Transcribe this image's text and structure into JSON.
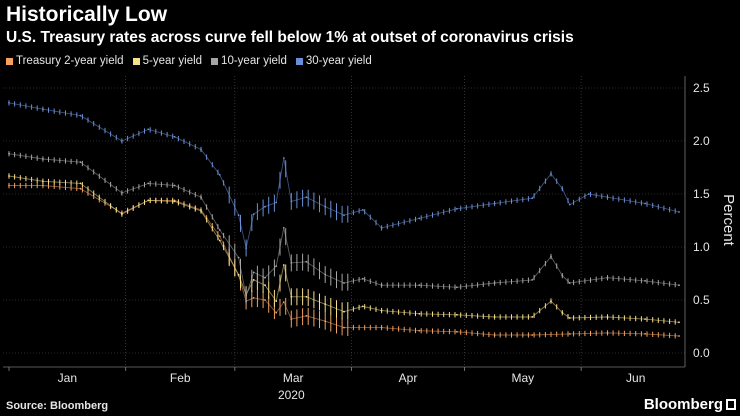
{
  "title": "Historically Low",
  "subtitle": "U.S. Treasury rates across curve fell below 1% at outset of coronavirus crisis",
  "legend": [
    {
      "label": "Treasury 2-year yield",
      "color": "#f4a261"
    },
    {
      "label": "5-year yield",
      "color": "#f7e08a"
    },
    {
      "label": "10-year yield",
      "color": "#a6a6a6"
    },
    {
      "label": "30-year yield",
      "color": "#6b8fd6"
    }
  ],
  "source": "Source: Bloomberg",
  "brand": "Bloomberg",
  "chart_data": {
    "type": "line",
    "title": "Historically Low",
    "xlabel": "2020",
    "ylabel": "Percent",
    "ylim": [
      0,
      2.6
    ],
    "y_ticks": [
      "0.0",
      "0.5",
      "1.0",
      "1.5",
      "2.0",
      "2.5"
    ],
    "x_ticks": [
      "Jan",
      "Feb",
      "Mar",
      "Apr",
      "May",
      "Jun"
    ],
    "x_year_label": "2020",
    "x_unit": "day of year 2020",
    "xlim": [
      1,
      179
    ],
    "month_starts": [
      1,
      32,
      61,
      92,
      122,
      153
    ],
    "grid": true,
    "series": [
      {
        "name": "Treasury 2-year yield",
        "color": "#f4a261",
        "points": [
          [
            1,
            1.58
          ],
          [
            10,
            1.58
          ],
          [
            20,
            1.55
          ],
          [
            31,
            1.32
          ],
          [
            38,
            1.44
          ],
          [
            45,
            1.44
          ],
          [
            52,
            1.35
          ],
          [
            57,
            1.1
          ],
          [
            62,
            0.73
          ],
          [
            64,
            0.49
          ],
          [
            66,
            0.52
          ],
          [
            69,
            0.5
          ],
          [
            72,
            0.38
          ],
          [
            74,
            0.48
          ],
          [
            76,
            0.32
          ],
          [
            80,
            0.35
          ],
          [
            85,
            0.3
          ],
          [
            90,
            0.24
          ],
          [
            100,
            0.24
          ],
          [
            110,
            0.21
          ],
          [
            120,
            0.2
          ],
          [
            130,
            0.17
          ],
          [
            140,
            0.17
          ],
          [
            150,
            0.18
          ],
          [
            160,
            0.19
          ],
          [
            170,
            0.18
          ],
          [
            179,
            0.16
          ]
        ]
      },
      {
        "name": "5-year yield",
        "color": "#f7e08a",
        "points": [
          [
            1,
            1.67
          ],
          [
            10,
            1.62
          ],
          [
            20,
            1.6
          ],
          [
            31,
            1.31
          ],
          [
            38,
            1.44
          ],
          [
            45,
            1.43
          ],
          [
            52,
            1.34
          ],
          [
            57,
            1.06
          ],
          [
            62,
            0.74
          ],
          [
            64,
            0.55
          ],
          [
            66,
            0.69
          ],
          [
            69,
            0.64
          ],
          [
            72,
            0.49
          ],
          [
            74,
            0.83
          ],
          [
            76,
            0.53
          ],
          [
            80,
            0.53
          ],
          [
            85,
            0.46
          ],
          [
            90,
            0.39
          ],
          [
            95,
            0.44
          ],
          [
            100,
            0.4
          ],
          [
            110,
            0.37
          ],
          [
            120,
            0.36
          ],
          [
            130,
            0.34
          ],
          [
            140,
            0.34
          ],
          [
            145,
            0.49
          ],
          [
            148,
            0.38
          ],
          [
            150,
            0.33
          ],
          [
            160,
            0.34
          ],
          [
            170,
            0.32
          ],
          [
            179,
            0.29
          ]
        ]
      },
      {
        "name": "10-year yield",
        "color": "#a6a6a6",
        "points": [
          [
            1,
            1.88
          ],
          [
            10,
            1.83
          ],
          [
            20,
            1.8
          ],
          [
            31,
            1.51
          ],
          [
            38,
            1.6
          ],
          [
            45,
            1.58
          ],
          [
            52,
            1.47
          ],
          [
            57,
            1.16
          ],
          [
            62,
            0.9
          ],
          [
            64,
            0.54
          ],
          [
            66,
            0.76
          ],
          [
            69,
            0.71
          ],
          [
            72,
            0.82
          ],
          [
            74,
            1.18
          ],
          [
            76,
            0.85
          ],
          [
            80,
            0.86
          ],
          [
            85,
            0.74
          ],
          [
            90,
            0.66
          ],
          [
            95,
            0.7
          ],
          [
            100,
            0.64
          ],
          [
            110,
            0.64
          ],
          [
            120,
            0.62
          ],
          [
            130,
            0.66
          ],
          [
            140,
            0.69
          ],
          [
            145,
            0.91
          ],
          [
            148,
            0.73
          ],
          [
            150,
            0.66
          ],
          [
            160,
            0.71
          ],
          [
            170,
            0.68
          ],
          [
            179,
            0.64
          ]
        ]
      },
      {
        "name": "30-year yield",
        "color": "#6b8fd6",
        "points": [
          [
            1,
            2.36
          ],
          [
            10,
            2.3
          ],
          [
            20,
            2.24
          ],
          [
            31,
            2.0
          ],
          [
            38,
            2.11
          ],
          [
            45,
            2.04
          ],
          [
            52,
            1.92
          ],
          [
            57,
            1.68
          ],
          [
            62,
            1.3
          ],
          [
            64,
            0.99
          ],
          [
            66,
            1.31
          ],
          [
            69,
            1.38
          ],
          [
            72,
            1.42
          ],
          [
            74,
            1.84
          ],
          [
            76,
            1.43
          ],
          [
            80,
            1.47
          ],
          [
            85,
            1.38
          ],
          [
            90,
            1.3
          ],
          [
            95,
            1.35
          ],
          [
            100,
            1.18
          ],
          [
            110,
            1.27
          ],
          [
            120,
            1.36
          ],
          [
            130,
            1.41
          ],
          [
            140,
            1.46
          ],
          [
            145,
            1.69
          ],
          [
            148,
            1.55
          ],
          [
            150,
            1.4
          ],
          [
            155,
            1.5
          ],
          [
            160,
            1.47
          ],
          [
            170,
            1.41
          ],
          [
            179,
            1.33
          ]
        ]
      }
    ]
  }
}
